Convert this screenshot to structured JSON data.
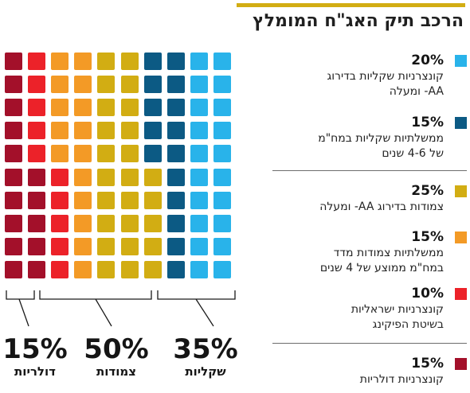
{
  "title": "הרכב תיק האג\"ח המומלץ",
  "colors": {
    "title_bar": "#d2ad13",
    "corp_aa": "#29b3ea",
    "gov_bonds": "#0c5a84",
    "indexed_aa": "#d2ad13",
    "indexed_gov": "#f39a26",
    "israeli_pegging": "#ec2229",
    "dollar_corp": "#a3102a"
  },
  "legend": [
    {
      "pct": "20%",
      "label_lines": [
        "קונצרניות שקליות בדירוג",
        "AA- ומעלה"
      ],
      "color": "#29b3ea"
    },
    {
      "pct": "15%",
      "label_lines": [
        "ממשלתיות שקליות במח\"מ",
        "של 4-6 שנים"
      ],
      "color": "#0c5a84"
    },
    {
      "pct": "25%",
      "label_lines": [
        "צמודות בדירוג AA- ומעלה"
      ],
      "color": "#d2ad13"
    },
    {
      "pct": "15%",
      "label_lines": [
        "ממשלתיות צמודות מדד",
        "במח\"מ ממוצע של 4 שנים"
      ],
      "color": "#f39a26"
    },
    {
      "pct": "10%",
      "label_lines": [
        "קונצרניות ישראליות",
        "בשיטת הפיקינג"
      ],
      "color": "#ec2229"
    },
    {
      "pct": "15%",
      "label_lines": [
        "קונצרניות דולריות"
      ],
      "color": "#a3102a"
    }
  ],
  "summary": [
    {
      "pct": "35%",
      "label": "שקליות"
    },
    {
      "pct": "50%",
      "label": "צמודות"
    },
    {
      "pct": "15%",
      "label": "דולריות"
    }
  ],
  "chart_data": {
    "type": "waffle",
    "title": "הרכב תיק האג\"ח המומלץ",
    "grid": {
      "columns": 10,
      "rows": 10,
      "cells_total": 100
    },
    "fill_order": "columns from right to left, top to bottom",
    "series": [
      {
        "name": "קונצרניות שקליות בדירוג AA- ומעלה",
        "value": 20,
        "color": "#29b3ea"
      },
      {
        "name": "ממשלתיות שקליות במח\"מ של 4-6 שנים",
        "value": 15,
        "color": "#0c5a84"
      },
      {
        "name": "צמודות בדירוג AA- ומעלה",
        "value": 25,
        "color": "#d2ad13"
      },
      {
        "name": "ממשלתיות צמודות מדד במח\"מ ממוצע של 4 שנים",
        "value": 15,
        "color": "#f39a26"
      },
      {
        "name": "קונצרניות ישראליות בשיטת הפיקינג",
        "value": 10,
        "color": "#ec2229"
      },
      {
        "name": "קונצרניות דולריות",
        "value": 15,
        "color": "#a3102a"
      }
    ],
    "groups": [
      {
        "name": "שקליות",
        "value": 35
      },
      {
        "name": "צמודות",
        "value": 50
      },
      {
        "name": "דולריות",
        "value": 15
      }
    ]
  }
}
